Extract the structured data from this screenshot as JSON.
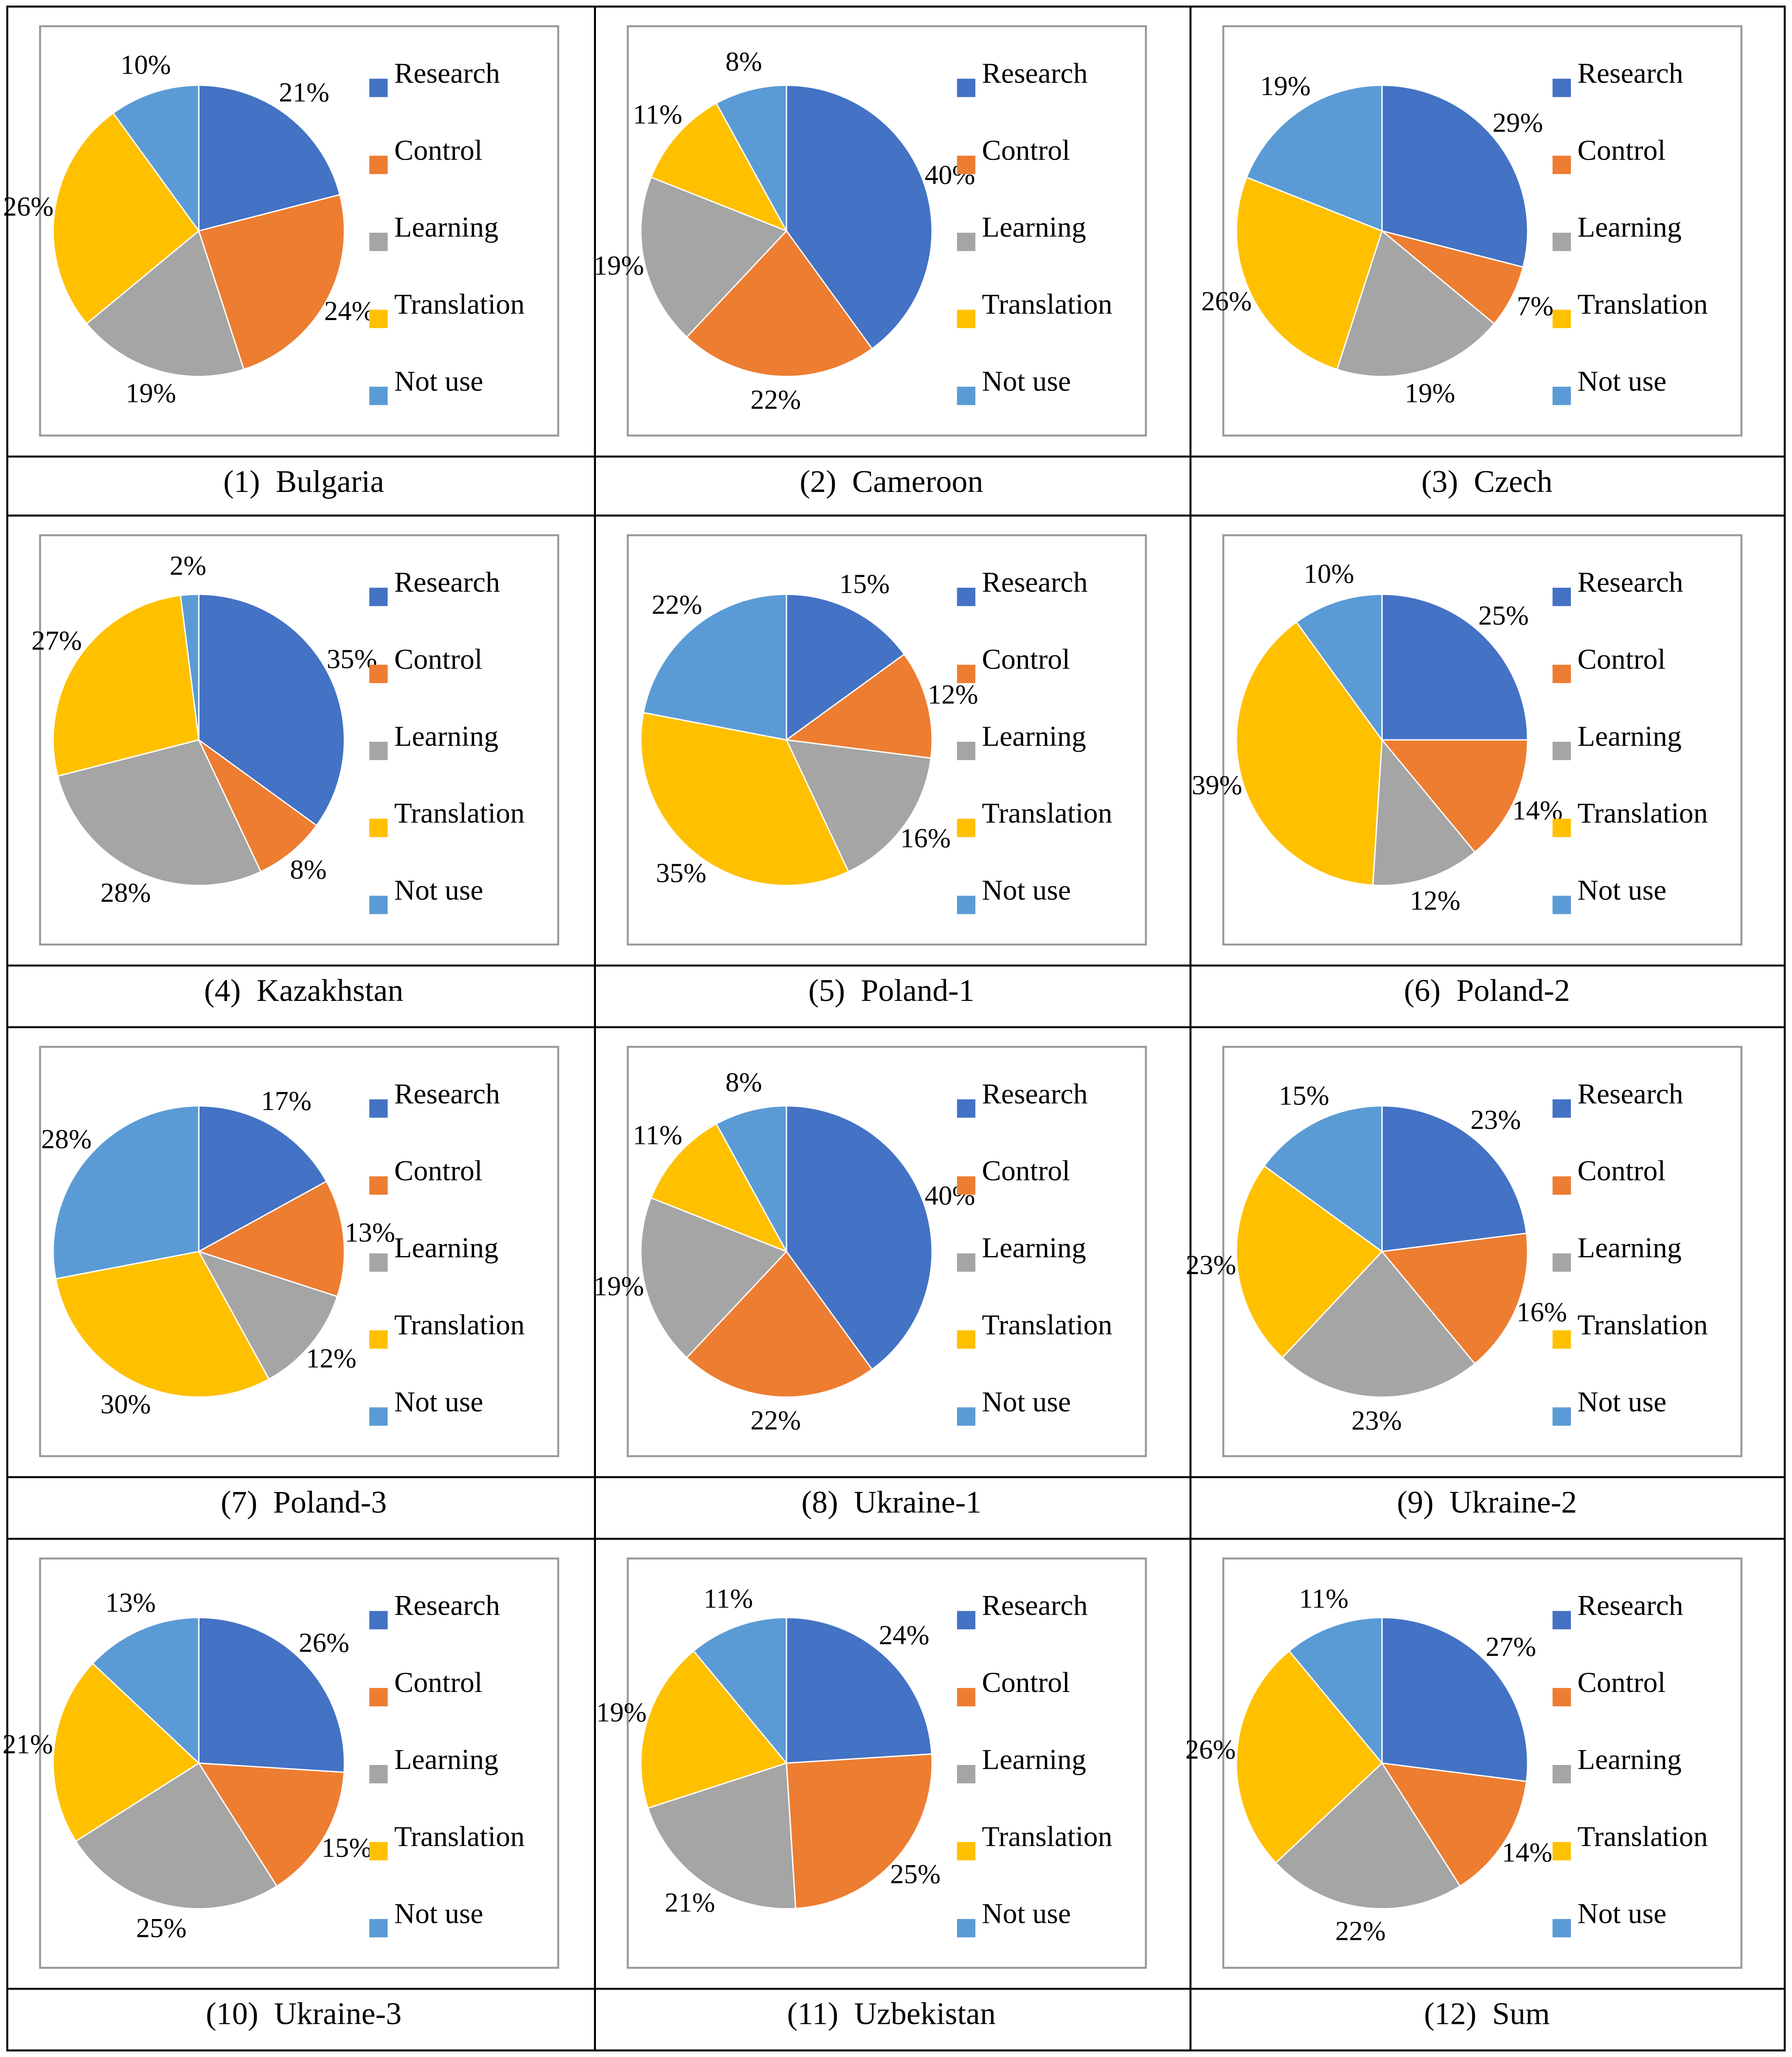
{
  "chart_data": [
    {
      "type": "pie",
      "number": "(1)",
      "title": "Bulgaria",
      "categories": [
        "Research",
        "Control",
        "Learning",
        "Translation",
        "Not use"
      ],
      "values": [
        21,
        24,
        19,
        26,
        10
      ],
      "value_labels": [
        "21%",
        "24%",
        "19%",
        "26%",
        "10%"
      ],
      "colors": [
        "#4472c4",
        "#ed7d31",
        "#a5a5a5",
        "#ffc000",
        "#5b9bd5"
      ]
    },
    {
      "type": "pie",
      "number": "(2)",
      "title": "Cameroon",
      "categories": [
        "Research",
        "Control",
        "Learning",
        "Translation",
        "Not use"
      ],
      "values": [
        40,
        22,
        19,
        11,
        8
      ],
      "value_labels": [
        "40%",
        "22%",
        "19%",
        "11%",
        "8%"
      ],
      "colors": [
        "#4472c4",
        "#ed7d31",
        "#a5a5a5",
        "#ffc000",
        "#5b9bd5"
      ]
    },
    {
      "type": "pie",
      "number": "(3)",
      "title": "Czech",
      "categories": [
        "Research",
        "Control",
        "Learning",
        "Translation",
        "Not use"
      ],
      "values": [
        29,
        7,
        19,
        26,
        19
      ],
      "value_labels": [
        "29%",
        "7%",
        "19%",
        "26%",
        "19%"
      ],
      "colors": [
        "#4472c4",
        "#ed7d31",
        "#a5a5a5",
        "#ffc000",
        "#5b9bd5"
      ]
    },
    {
      "type": "pie",
      "number": "(4)",
      "title": "Kazakhstan",
      "categories": [
        "Research",
        "Control",
        "Learning",
        "Translation",
        "Not use"
      ],
      "values": [
        35,
        8,
        28,
        27,
        2
      ],
      "value_labels": [
        "35%",
        "8%",
        "28%",
        "27%",
        "2%"
      ],
      "colors": [
        "#4472c4",
        "#ed7d31",
        "#a5a5a5",
        "#ffc000",
        "#5b9bd5"
      ]
    },
    {
      "type": "pie",
      "number": "(5)",
      "title": "Poland-1",
      "categories": [
        "Research",
        "Control",
        "Learning",
        "Translation",
        "Not use"
      ],
      "values": [
        15,
        12,
        16,
        35,
        22
      ],
      "value_labels": [
        "15%",
        "12%",
        "16%",
        "35%",
        "22%"
      ],
      "colors": [
        "#4472c4",
        "#ed7d31",
        "#a5a5a5",
        "#ffc000",
        "#5b9bd5"
      ]
    },
    {
      "type": "pie",
      "number": "(6)",
      "title": "Poland-2",
      "categories": [
        "Research",
        "Control",
        "Learning",
        "Translation",
        "Not use"
      ],
      "values": [
        25,
        14,
        12,
        39,
        10
      ],
      "value_labels": [
        "25%",
        "14%",
        "12%",
        "39%",
        "10%"
      ],
      "colors": [
        "#4472c4",
        "#ed7d31",
        "#a5a5a5",
        "#ffc000",
        "#5b9bd5"
      ]
    },
    {
      "type": "pie",
      "number": "(7)",
      "title": "Poland-3",
      "categories": [
        "Research",
        "Control",
        "Learning",
        "Translation",
        "Not use"
      ],
      "values": [
        17,
        13,
        12,
        30,
        28
      ],
      "value_labels": [
        "17%",
        "13%",
        "12%",
        "30%",
        "28%"
      ],
      "colors": [
        "#4472c4",
        "#ed7d31",
        "#a5a5a5",
        "#ffc000",
        "#5b9bd5"
      ]
    },
    {
      "type": "pie",
      "number": "(8)",
      "title": "Ukraine-1",
      "categories": [
        "Research",
        "Control",
        "Learning",
        "Translation",
        "Not use"
      ],
      "values": [
        40,
        22,
        19,
        11,
        8
      ],
      "value_labels": [
        "40%",
        "22%",
        "19%",
        "11%",
        "8%"
      ],
      "colors": [
        "#4472c4",
        "#ed7d31",
        "#a5a5a5",
        "#ffc000",
        "#5b9bd5"
      ]
    },
    {
      "type": "pie",
      "number": "(9)",
      "title": "Ukraine-2",
      "categories": [
        "Research",
        "Control",
        "Learning",
        "Translation",
        "Not use"
      ],
      "values": [
        23,
        16,
        23,
        23,
        15
      ],
      "value_labels": [
        "23%",
        "16%",
        "23%",
        "23%",
        "15%"
      ],
      "colors": [
        "#4472c4",
        "#ed7d31",
        "#a5a5a5",
        "#ffc000",
        "#5b9bd5"
      ]
    },
    {
      "type": "pie",
      "number": "(10)",
      "title": "Ukraine-3",
      "categories": [
        "Research",
        "Control",
        "Learning",
        "Translation",
        "Not use"
      ],
      "values": [
        26,
        15,
        25,
        21,
        13
      ],
      "value_labels": [
        "26%",
        "15%",
        "25%",
        "21%",
        "13%"
      ],
      "colors": [
        "#4472c4",
        "#ed7d31",
        "#a5a5a5",
        "#ffc000",
        "#5b9bd5"
      ]
    },
    {
      "type": "pie",
      "number": "(11)",
      "title": "Uzbekistan",
      "categories": [
        "Research",
        "Control",
        "Learning",
        "Translation",
        "Not use"
      ],
      "values": [
        24,
        25,
        21,
        19,
        11
      ],
      "value_labels": [
        "24%",
        "25%",
        "21%",
        "19%",
        "11%"
      ],
      "colors": [
        "#4472c4",
        "#ed7d31",
        "#a5a5a5",
        "#ffc000",
        "#5b9bd5"
      ]
    },
    {
      "type": "pie",
      "number": "(12)",
      "title": "Sum",
      "categories": [
        "Research",
        "Control",
        "Learning",
        "Translation",
        "Not use"
      ],
      "values": [
        27,
        14,
        22,
        26,
        11
      ],
      "value_labels": [
        "27%",
        "14%",
        "22%",
        "26%",
        "11%"
      ],
      "colors": [
        "#4472c4",
        "#ed7d31",
        "#a5a5a5",
        "#ffc000",
        "#5b9bd5"
      ]
    }
  ]
}
